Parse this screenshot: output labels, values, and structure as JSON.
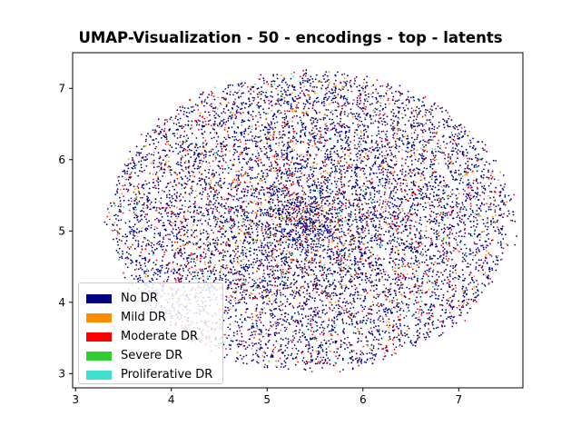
{
  "chart_data": {
    "type": "scatter",
    "title": "UMAP-Visualization - 50 - encodings - top - latents",
    "xlabel": "",
    "ylabel": "",
    "xlim": [
      2.97,
      7.67
    ],
    "ylim": [
      2.8,
      7.5
    ],
    "x_ticks": [
      "3",
      "4",
      "5",
      "6",
      "7"
    ],
    "y_ticks": [
      "3",
      "4",
      "5",
      "6",
      "7"
    ],
    "grid": false,
    "legend_position": "lower-left",
    "point_cloud": {
      "center": [
        5.45,
        5.15
      ],
      "x_extent": [
        3.15,
        7.5
      ],
      "y_extent": [
        3.0,
        7.3
      ]
    },
    "series": [
      {
        "name": "No DR",
        "color": "#000080",
        "approx_points": 7000
      },
      {
        "name": "Mild DR",
        "color": "#ff8c00",
        "approx_points": 700
      },
      {
        "name": "Moderate DR",
        "color": "#ff0000",
        "approx_points": 1300
      },
      {
        "name": "Severe DR",
        "color": "#32cd32",
        "approx_points": 140
      },
      {
        "name": "Proliferative DR",
        "color": "#40e0d0",
        "approx_points": 120
      }
    ]
  }
}
